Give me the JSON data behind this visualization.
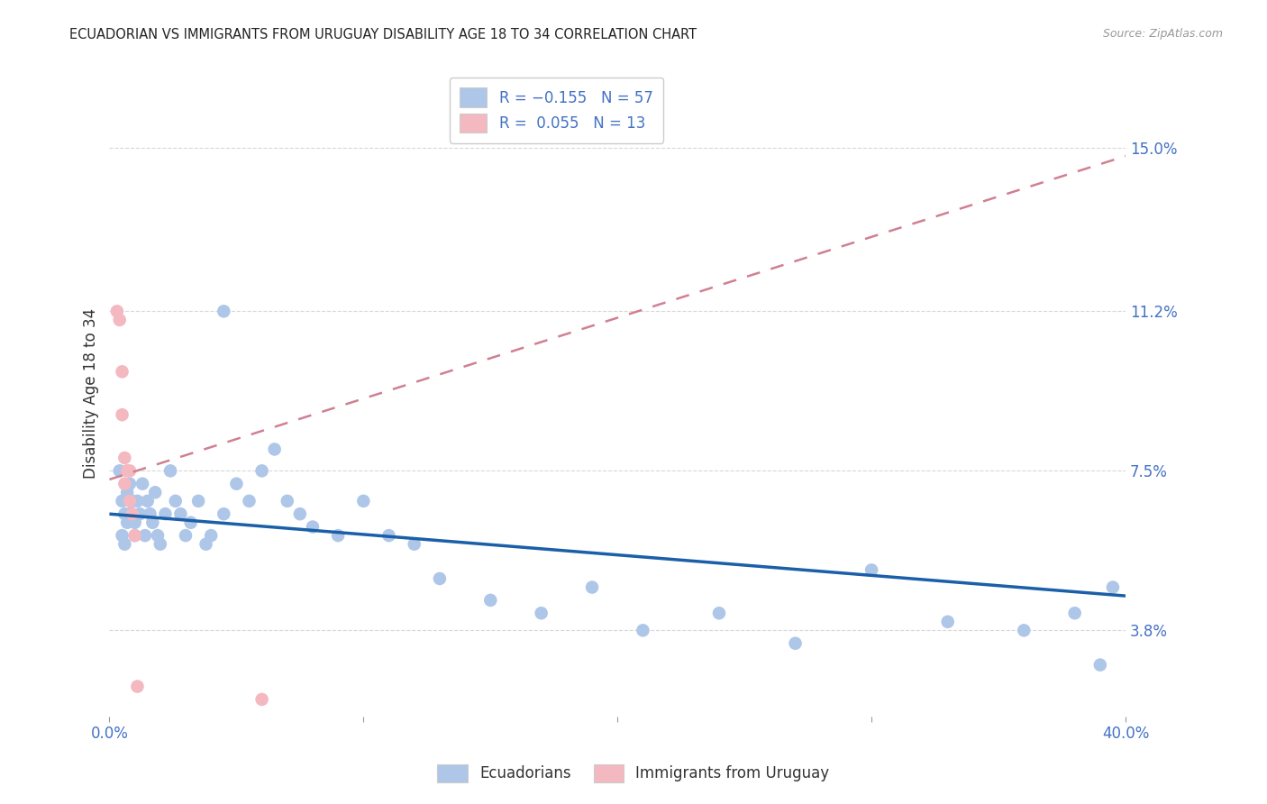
{
  "title": "ECUADORIAN VS IMMIGRANTS FROM URUGUAY DISABILITY AGE 18 TO 34 CORRELATION CHART",
  "source": "Source: ZipAtlas.com",
  "ylabel": "Disability Age 18 to 34",
  "ytick_labels": [
    "3.8%",
    "7.5%",
    "11.2%",
    "15.0%"
  ],
  "ytick_values": [
    0.038,
    0.075,
    0.112,
    0.15
  ],
  "xlim": [
    0.0,
    0.4
  ],
  "ylim": [
    0.018,
    0.168
  ],
  "xtick_positions": [
    0.0,
    0.1,
    0.2,
    0.3,
    0.4
  ],
  "xtick_labels": [
    "0.0%",
    "",
    "",
    "",
    "40.0%"
  ],
  "legend_r_entries": [
    {
      "label": "R = −0.155   N = 57",
      "color": "#aec6e8"
    },
    {
      "label": "R =  0.055   N = 13",
      "color": "#f4b8c0"
    }
  ],
  "legend_group_labels": [
    "Ecuadorians",
    "Immigrants from Uruguay"
  ],
  "ecuadorians_color": "#aec6e8",
  "immigrants_color": "#f4b8c0",
  "trend_blue_color": "#1a5fa8",
  "trend_pink_color": "#d08090",
  "background_color": "#ffffff",
  "grid_color": "#d8d8d8",
  "title_color": "#222222",
  "axis_label_color": "#4472c4",
  "ecuadorians_x": [
    0.004,
    0.005,
    0.005,
    0.006,
    0.006,
    0.007,
    0.007,
    0.008,
    0.008,
    0.009,
    0.01,
    0.01,
    0.011,
    0.012,
    0.013,
    0.014,
    0.015,
    0.016,
    0.017,
    0.018,
    0.019,
    0.02,
    0.022,
    0.024,
    0.026,
    0.028,
    0.03,
    0.032,
    0.035,
    0.038,
    0.04,
    0.045,
    0.05,
    0.055,
    0.06,
    0.065,
    0.07,
    0.075,
    0.08,
    0.09,
    0.1,
    0.11,
    0.12,
    0.13,
    0.15,
    0.17,
    0.19,
    0.21,
    0.24,
    0.27,
    0.3,
    0.33,
    0.36,
    0.38,
    0.39,
    0.395,
    0.045
  ],
  "ecuadorians_y": [
    0.075,
    0.068,
    0.06,
    0.065,
    0.058,
    0.07,
    0.063,
    0.072,
    0.065,
    0.068,
    0.06,
    0.063,
    0.068,
    0.065,
    0.072,
    0.06,
    0.068,
    0.065,
    0.063,
    0.07,
    0.06,
    0.058,
    0.065,
    0.075,
    0.068,
    0.065,
    0.06,
    0.063,
    0.068,
    0.058,
    0.06,
    0.065,
    0.072,
    0.068,
    0.075,
    0.08,
    0.068,
    0.065,
    0.062,
    0.06,
    0.068,
    0.06,
    0.058,
    0.05,
    0.045,
    0.042,
    0.048,
    0.038,
    0.042,
    0.035,
    0.052,
    0.04,
    0.038,
    0.042,
    0.03,
    0.048,
    0.112
  ],
  "immigrants_x": [
    0.003,
    0.004,
    0.005,
    0.005,
    0.006,
    0.006,
    0.007,
    0.008,
    0.008,
    0.009,
    0.01,
    0.011,
    0.06
  ],
  "immigrants_y": [
    0.112,
    0.11,
    0.098,
    0.088,
    0.078,
    0.072,
    0.075,
    0.075,
    0.068,
    0.065,
    0.06,
    0.025,
    0.022
  ],
  "ecu_trend_x": [
    0.0,
    0.4
  ],
  "ecu_trend_y": [
    0.065,
    0.046
  ],
  "imm_trend_x": [
    0.0,
    0.4
  ],
  "imm_trend_y": [
    0.073,
    0.148
  ]
}
